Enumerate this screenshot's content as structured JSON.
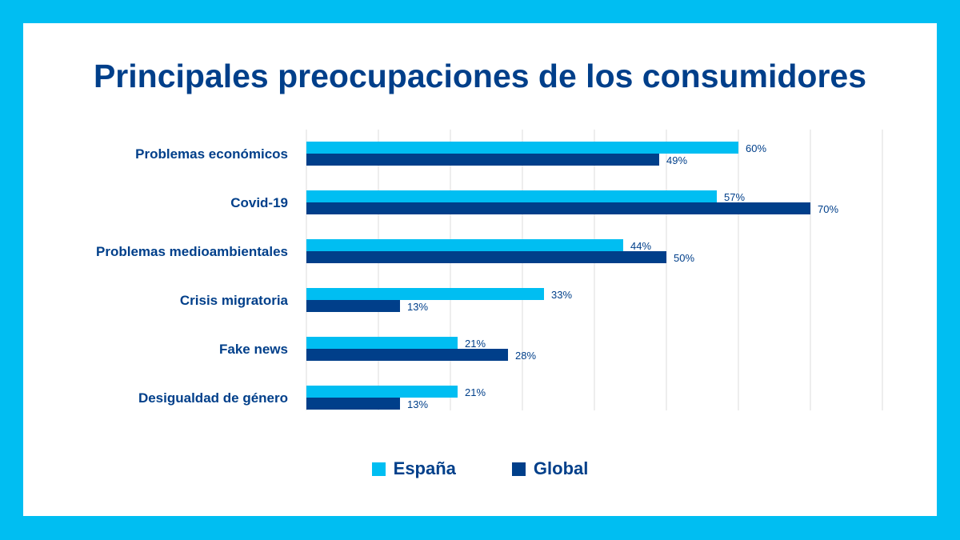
{
  "chart_data": {
    "type": "bar",
    "orientation": "horizontal",
    "title": "Principales preocupaciones de los consumidores",
    "categories": [
      "Problemas económicos",
      "Covid-19",
      "Problemas medioambientales",
      "Crisis migratoria",
      "Fake news",
      "Desigualdad de género"
    ],
    "series": [
      {
        "name": "España",
        "color": "#00BEF2",
        "values": [
          60,
          57,
          44,
          33,
          21,
          21
        ],
        "labels": [
          "60%",
          "57%",
          "44%",
          "33%",
          "21%",
          "21%"
        ]
      },
      {
        "name": "Global",
        "color": "#003F8A",
        "values": [
          49,
          70,
          50,
          13,
          28,
          13
        ],
        "labels": [
          "49%",
          "70%",
          "50%",
          "13%",
          "28%",
          "13%"
        ]
      }
    ],
    "xlim": [
      0,
      80
    ],
    "grid": true,
    "legend_position": "bottom"
  }
}
